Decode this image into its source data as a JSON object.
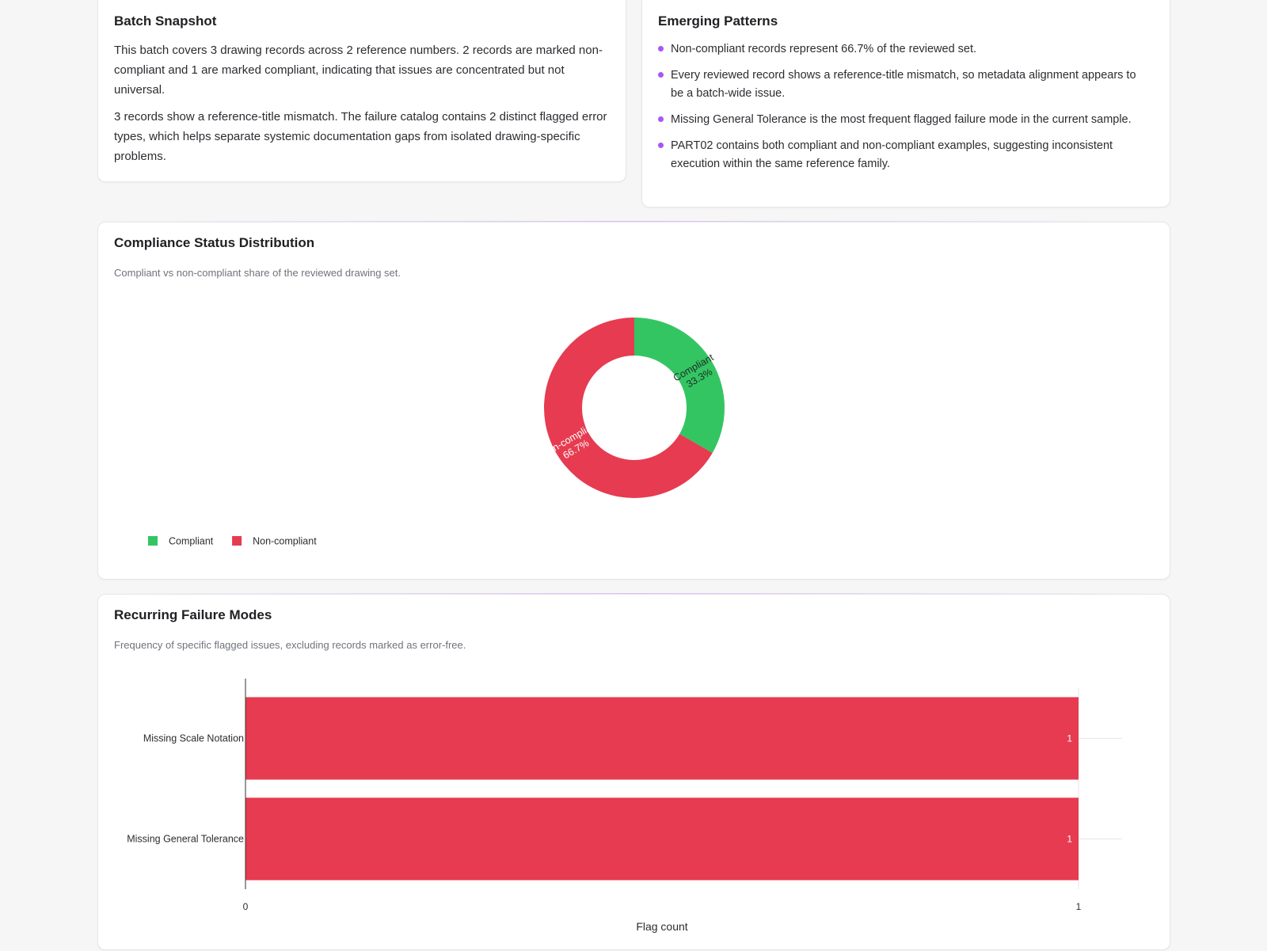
{
  "snapshot": {
    "title": "Batch Snapshot",
    "paragraphs": [
      "This batch covers 3 drawing records across 2 reference numbers. 2 records are marked non-compliant and 1 are marked compliant, indicating that issues are concentrated but not universal.",
      "3 records show a reference-title mismatch. The failure catalog contains 2 distinct flagged error types, which helps separate systemic documentation gaps from isolated drawing-specific problems."
    ]
  },
  "patterns": {
    "title": "Emerging Patterns",
    "items": [
      "Non-compliant records represent 66.7% of the reviewed set.",
      "Every reviewed record shows a reference-title mismatch, so metadata alignment appears to be a batch-wide issue.",
      "Missing General Tolerance is the most frequent flagged failure mode in the current sample.",
      "PART02 contains both compliant and non-compliant examples, suggesting inconsistent execution within the same reference family."
    ]
  },
  "compliance": {
    "title": "Compliance Status Distribution",
    "subtitle": "Compliant vs non-compliant share of the reviewed drawing set."
  },
  "failures": {
    "title": "Recurring Failure Modes",
    "subtitle": "Frequency of specific flagged issues, excluding records marked as error-free."
  },
  "chart_data": [
    {
      "type": "pie",
      "donut": true,
      "labels": [
        "Compliant",
        "Non-compliant"
      ],
      "values": [
        1,
        2
      ],
      "percent_labels": [
        "33.3%",
        "66.7%"
      ],
      "colors": [
        "#34c563",
        "#e63b50"
      ],
      "legend": "bottom-left"
    },
    {
      "type": "bar",
      "orientation": "horizontal",
      "categories": [
        "Missing Scale Notation",
        "Missing General Tolerance"
      ],
      "values": [
        1,
        1
      ],
      "value_labels": [
        "1",
        "1"
      ],
      "xlabel": "Flag count",
      "xlim": [
        0,
        1
      ],
      "xticks": [
        "0",
        "1"
      ],
      "color": "#e63b50"
    }
  ]
}
